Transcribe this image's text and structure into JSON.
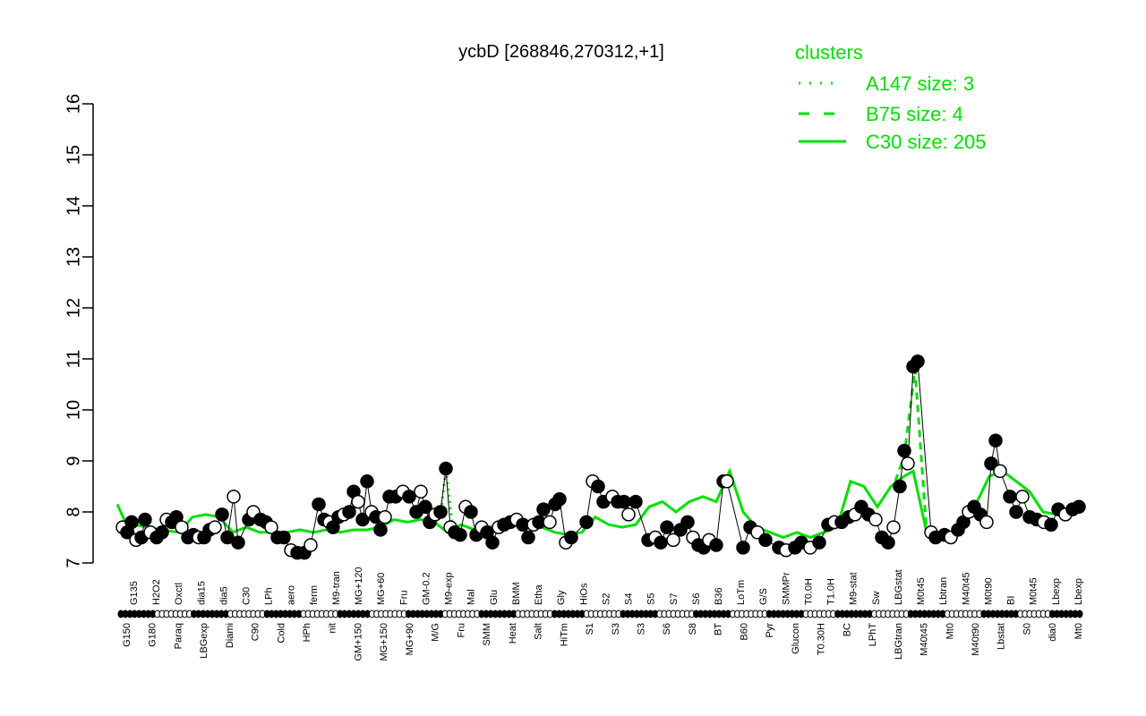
{
  "chart_data": {
    "type": "line",
    "title": "ycbD [268846,270312,+1]",
    "xlabel": "",
    "ylabel": "",
    "ylim": [
      7,
      16
    ],
    "yticks": [
      7,
      8,
      9,
      10,
      11,
      12,
      13,
      14,
      15,
      16
    ],
    "grid": false,
    "legend_position": "top-right",
    "legend": {
      "title": "clusters",
      "entries": [
        {
          "label": "A147 size: 3",
          "style": "dotted",
          "color": "#00e000"
        },
        {
          "label": "B75 size: 4",
          "style": "dashed",
          "color": "#00e000"
        },
        {
          "label": "C30 size: 205",
          "style": "solid",
          "color": "#00e000"
        }
      ]
    },
    "x_labels_bottom": [
      "G150",
      "G180",
      "Paraq",
      "LBGexp",
      "Diami",
      "C90",
      "Cold",
      "HPh",
      "nit",
      "GM+150",
      "MG+150",
      "MG+90",
      "M/G",
      "Fru",
      "SMM",
      "Heat",
      "Salt",
      "HiTm",
      "S1",
      "S3",
      "S3",
      "S6",
      "S8",
      "BT",
      "B60",
      "Pyr",
      "Glucon",
      "T0.30H",
      "BC",
      "LPhT",
      "LBGtran",
      "M40t45",
      "Mt0",
      "M40t90",
      "Lbstat",
      "S0",
      "dia0",
      "Mt0"
    ],
    "x_labels_top": [
      "G135",
      "H2O2",
      "Oxctl",
      "dia15",
      "dia5",
      "C30",
      "LPh",
      "aero",
      "ferm",
      "M9-tran",
      "MG+120",
      "MG+60",
      "Fru",
      "GM-0.2",
      "M9-exp",
      "Mal",
      "Glu",
      "BMM",
      "Etha",
      "Gly",
      "HiOs",
      "S2",
      "S4",
      "S5",
      "S7",
      "S6",
      "B36",
      "LoTm",
      "G/S",
      "SMMPr",
      "T0.0H",
      "T1.0H",
      "M9-stat",
      "Sw",
      "LBGstat",
      "M0t45",
      "Lbtran",
      "M40t45",
      "M0t90",
      "BI",
      "M0t45",
      "Lbexp",
      "Lbexp"
    ],
    "series": [
      {
        "name": "C30 size: 205 (cluster mean)",
        "style": "solid",
        "color": "#00e000",
        "points": [
          [
            131,
            8.15
          ],
          [
            140,
            7.8
          ],
          [
            150,
            7.75
          ],
          [
            165,
            7.7
          ],
          [
            180,
            7.65
          ],
          [
            200,
            7.6
          ],
          [
            215,
            7.9
          ],
          [
            230,
            7.95
          ],
          [
            245,
            7.9
          ],
          [
            260,
            7.6
          ],
          [
            275,
            7.7
          ],
          [
            290,
            7.6
          ],
          [
            305,
            7.6
          ],
          [
            320,
            7.6
          ],
          [
            335,
            7.65
          ],
          [
            350,
            7.6
          ],
          [
            365,
            7.65
          ],
          [
            380,
            7.6
          ],
          [
            395,
            7.65
          ],
          [
            410,
            7.65
          ],
          [
            425,
            7.7
          ],
          [
            440,
            7.85
          ],
          [
            455,
            7.8
          ],
          [
            470,
            7.85
          ],
          [
            485,
            7.8
          ],
          [
            500,
            7.6
          ],
          [
            515,
            7.75
          ],
          [
            530,
            7.65
          ],
          [
            545,
            7.7
          ],
          [
            560,
            7.75
          ],
          [
            575,
            7.8
          ],
          [
            590,
            7.8
          ],
          [
            605,
            7.7
          ],
          [
            620,
            7.6
          ],
          [
            635,
            7.55
          ],
          [
            650,
            7.6
          ],
          [
            665,
            7.9
          ],
          [
            680,
            7.75
          ],
          [
            695,
            7.7
          ],
          [
            710,
            7.75
          ],
          [
            725,
            8.1
          ],
          [
            740,
            8.2
          ],
          [
            755,
            8.0
          ],
          [
            770,
            8.2
          ],
          [
            785,
            8.3
          ],
          [
            800,
            8.2
          ],
          [
            815,
            8.8
          ],
          [
            830,
            8.0
          ],
          [
            845,
            7.7
          ],
          [
            860,
            7.6
          ],
          [
            875,
            7.5
          ],
          [
            890,
            7.6
          ],
          [
            905,
            7.5
          ],
          [
            920,
            7.6
          ],
          [
            935,
            7.7
          ],
          [
            950,
            8.6
          ],
          [
            965,
            8.5
          ],
          [
            980,
            8.1
          ],
          [
            995,
            8.5
          ],
          [
            1010,
            8.7
          ],
          [
            1020,
            8.8
          ],
          [
            1035,
            7.6
          ],
          [
            1050,
            7.6
          ],
          [
            1065,
            7.55
          ],
          [
            1080,
            7.8
          ],
          [
            1090,
            8.15
          ],
          [
            1105,
            8.7
          ],
          [
            1120,
            8.8
          ],
          [
            1135,
            8.6
          ],
          [
            1150,
            8.4
          ],
          [
            1165,
            8.0
          ],
          [
            1180,
            7.95
          ],
          [
            1195,
            8.05
          ],
          [
            1210,
            8.05
          ]
        ]
      },
      {
        "name": "B75 size: 4",
        "style": "dashed",
        "color": "#00e000",
        "points": [
          [
            1000,
            8.6
          ],
          [
            1010,
            9.1
          ],
          [
            1022,
            10.8
          ],
          [
            1035,
            7.6
          ]
        ]
      },
      {
        "name": "A147 size: 3",
        "style": "dotted",
        "color": "#00e000",
        "points": [
          [
            492,
            7.9
          ],
          [
            498,
            8.85
          ],
          [
            505,
            7.8
          ]
        ]
      },
      {
        "name": "samples",
        "style": "points",
        "color": "#000000",
        "points": [
          [
            137,
            7.7
          ],
          [
            142,
            7.6
          ],
          [
            147,
            7.8
          ],
          [
            152,
            7.45
          ],
          [
            158,
            7.5
          ],
          [
            162,
            7.85
          ],
          [
            168,
            7.6
          ],
          [
            175,
            7.5
          ],
          [
            181,
            7.6
          ],
          [
            186,
            7.85
          ],
          [
            192,
            7.8
          ],
          [
            197,
            7.9
          ],
          [
            203,
            7.7
          ],
          [
            210,
            7.5
          ],
          [
            216,
            7.55
          ],
          [
            222,
            7.5
          ],
          [
            228,
            7.5
          ],
          [
            234,
            7.65
          ],
          [
            240,
            7.7
          ],
          [
            248,
            7.95
          ],
          [
            254,
            7.5
          ],
          [
            261,
            8.3
          ],
          [
            266,
            7.4
          ],
          [
            278,
            7.85
          ],
          [
            283,
            8.0
          ],
          [
            291,
            7.85
          ],
          [
            297,
            7.8
          ],
          [
            303,
            7.7
          ],
          [
            310,
            7.5
          ],
          [
            317,
            7.5
          ],
          [
            325,
            7.25
          ],
          [
            332,
            7.2
          ],
          [
            340,
            7.2
          ],
          [
            347,
            7.35
          ],
          [
            356,
            8.15
          ],
          [
            362,
            7.85
          ],
          [
            368,
            7.8
          ],
          [
            372,
            7.7
          ],
          [
            378,
            7.9
          ],
          [
            384,
            7.95
          ],
          [
            390,
            8.0
          ],
          [
            395,
            8.4
          ],
          [
            400,
            8.2
          ],
          [
            405,
            7.85
          ],
          [
            410,
            8.6
          ],
          [
            415,
            8.0
          ],
          [
            420,
            7.9
          ],
          [
            425,
            7.65
          ],
          [
            430,
            7.9
          ],
          [
            435,
            8.3
          ],
          [
            442,
            8.3
          ],
          [
            450,
            8.4
          ],
          [
            457,
            8.3
          ],
          [
            465,
            8.0
          ],
          [
            470,
            8.4
          ],
          [
            475,
            8.1
          ],
          [
            480,
            7.8
          ],
          [
            486,
            7.95
          ],
          [
            492,
            8.0
          ],
          [
            498,
            8.85
          ],
          [
            503,
            7.7
          ],
          [
            508,
            7.6
          ],
          [
            514,
            7.55
          ],
          [
            520,
            8.1
          ],
          [
            526,
            8.0
          ],
          [
            532,
            7.55
          ],
          [
            538,
            7.7
          ],
          [
            544,
            7.6
          ],
          [
            550,
            7.4
          ],
          [
            557,
            7.7
          ],
          [
            563,
            7.75
          ],
          [
            570,
            7.8
          ],
          [
            577,
            7.85
          ],
          [
            584,
            7.75
          ],
          [
            590,
            7.5
          ],
          [
            596,
            7.75
          ],
          [
            602,
            7.8
          ],
          [
            607,
            8.05
          ],
          [
            614,
            7.8
          ],
          [
            620,
            8.15
          ],
          [
            625,
            8.25
          ],
          [
            632,
            7.4
          ],
          [
            638,
            7.5
          ],
          [
            655,
            7.8
          ],
          [
            662,
            8.6
          ],
          [
            668,
            8.5
          ],
          [
            674,
            8.2
          ],
          [
            684,
            8.3
          ],
          [
            690,
            8.2
          ],
          [
            697,
            8.2
          ],
          [
            702,
            7.95
          ],
          [
            710,
            8.2
          ],
          [
            724,
            7.45
          ],
          [
            732,
            7.5
          ],
          [
            738,
            7.4
          ],
          [
            745,
            7.7
          ],
          [
            752,
            7.45
          ],
          [
            760,
            7.65
          ],
          [
            768,
            7.8
          ],
          [
            774,
            7.5
          ],
          [
            780,
            7.35
          ],
          [
            786,
            7.3
          ],
          [
            792,
            7.45
          ],
          [
            800,
            7.35
          ],
          [
            808,
            8.6
          ],
          [
            812,
            8.6
          ],
          [
            830,
            7.3
          ],
          [
            838,
            7.7
          ],
          [
            846,
            7.6
          ],
          [
            855,
            7.45
          ],
          [
            870,
            7.3
          ],
          [
            878,
            7.25
          ],
          [
            888,
            7.3
          ],
          [
            895,
            7.4
          ],
          [
            905,
            7.3
          ],
          [
            915,
            7.4
          ],
          [
            925,
            7.75
          ],
          [
            932,
            7.8
          ],
          [
            940,
            7.8
          ],
          [
            948,
            7.9
          ],
          [
            955,
            7.95
          ],
          [
            962,
            8.1
          ],
          [
            970,
            7.95
          ],
          [
            978,
            7.85
          ],
          [
            985,
            7.5
          ],
          [
            992,
            7.4
          ],
          [
            998,
            7.7
          ],
          [
            1005,
            8.5
          ],
          [
            1010,
            9.2
          ],
          [
            1014,
            8.95
          ],
          [
            1020,
            10.85
          ],
          [
            1025,
            10.95
          ],
          [
            1040,
            7.6
          ],
          [
            1045,
            7.5
          ],
          [
            1055,
            7.55
          ],
          [
            1062,
            7.5
          ],
          [
            1070,
            7.65
          ],
          [
            1076,
            7.8
          ],
          [
            1082,
            8.0
          ],
          [
            1088,
            8.1
          ],
          [
            1095,
            7.95
          ],
          [
            1102,
            7.8
          ],
          [
            1107,
            8.95
          ],
          [
            1112,
            9.4
          ],
          [
            1117,
            8.8
          ],
          [
            1128,
            8.3
          ],
          [
            1135,
            8.0
          ],
          [
            1142,
            8.3
          ],
          [
            1150,
            7.9
          ],
          [
            1158,
            7.85
          ],
          [
            1166,
            7.8
          ],
          [
            1174,
            7.75
          ],
          [
            1182,
            8.05
          ],
          [
            1190,
            7.95
          ],
          [
            1198,
            8.05
          ],
          [
            1205,
            8.1
          ]
        ]
      }
    ]
  }
}
